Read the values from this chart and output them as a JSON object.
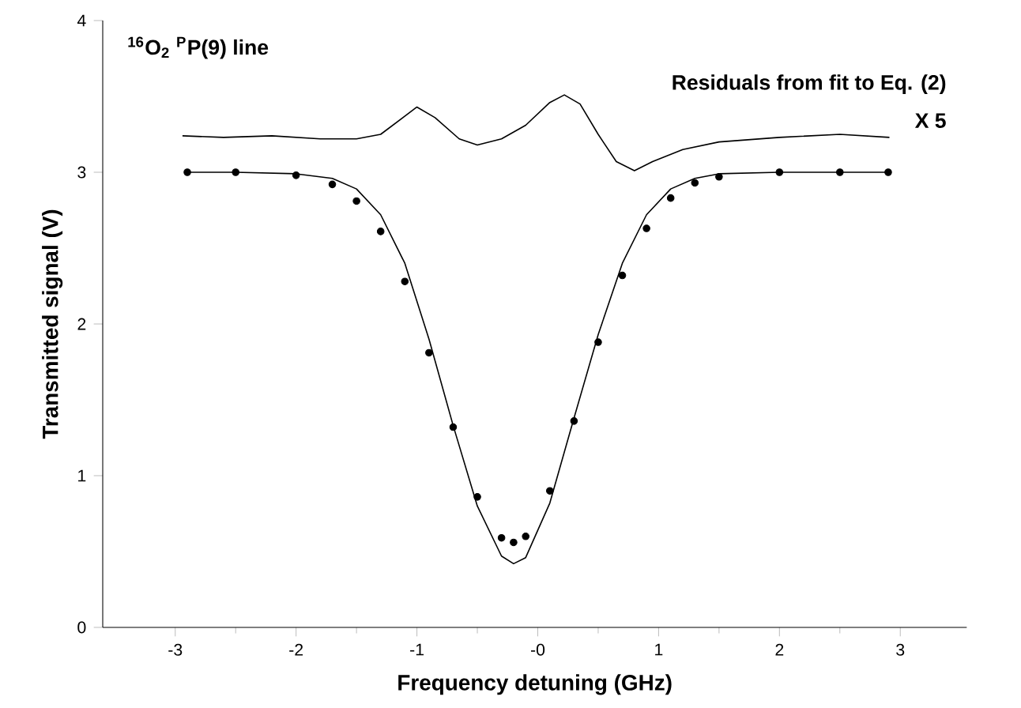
{
  "chart_data": {
    "type": "line",
    "title": "$^{16}$O$_{2}$ $^{P}$P(9) line",
    "xlabel": "Frequency detuning (GHz)",
    "ylabel": "Transmitted signal (V)",
    "annotations": [
      "Residuals from fit to Eq. (2)",
      "X 5"
    ],
    "xlim": [
      -3.6,
      3.55
    ],
    "ylim": [
      0,
      4
    ],
    "xticks": [
      -3,
      -2,
      -1,
      {
        "value": 0,
        "label": "-0"
      },
      1,
      2,
      3
    ],
    "yticks": [
      0,
      1,
      2,
      3,
      4
    ],
    "grid": false,
    "series": [
      {
        "type": "scatter",
        "marker": "circle",
        "color": "#000000",
        "x": [
          -2.9,
          -2.5,
          -2.0,
          -1.7,
          -1.5,
          -1.3,
          -1.1,
          -0.9,
          -0.7,
          -0.5,
          -0.3,
          -0.2,
          -0.1,
          0.1,
          0.3,
          0.5,
          0.7,
          0.9,
          1.1,
          1.3,
          1.5,
          2.0,
          2.5,
          2.9
        ],
        "values": [
          3.0,
          3.0,
          2.98,
          2.92,
          2.81,
          2.61,
          2.28,
          1.81,
          1.32,
          0.86,
          0.59,
          0.56,
          0.6,
          0.9,
          1.36,
          1.88,
          2.32,
          2.63,
          2.83,
          2.93,
          2.97,
          3.0,
          3.0,
          3.0
        ]
      },
      {
        "type": "line",
        "marker": "none",
        "line_style": "solid",
        "color": "#000000",
        "x": [
          -2.9,
          -2.5,
          -2.0,
          -1.7,
          -1.5,
          -1.3,
          -1.1,
          -0.9,
          -0.7,
          -0.5,
          -0.3,
          -0.2,
          -0.1,
          0.1,
          0.3,
          0.5,
          0.7,
          0.9,
          1.1,
          1.3,
          1.5,
          2.0,
          2.5,
          2.9
        ],
        "values": [
          3.0,
          3.0,
          2.99,
          2.96,
          2.89,
          2.72,
          2.4,
          1.9,
          1.33,
          0.8,
          0.47,
          0.42,
          0.46,
          0.82,
          1.38,
          1.93,
          2.4,
          2.72,
          2.89,
          2.96,
          2.99,
          3.0,
          3.0,
          3.0
        ]
      },
      {
        "type": "line",
        "marker": "none",
        "line_style": "solid",
        "color": "#000000",
        "x": [
          -2.94,
          -2.6,
          -2.2,
          -1.8,
          -1.5,
          -1.3,
          -1.15,
          -1.0,
          -0.85,
          -0.65,
          -0.5,
          -0.3,
          -0.1,
          0.1,
          0.22,
          0.35,
          0.5,
          0.65,
          0.8,
          0.95,
          1.2,
          1.5,
          2.0,
          2.5,
          2.91
        ],
        "values": [
          3.24,
          3.23,
          3.24,
          3.22,
          3.22,
          3.25,
          3.34,
          3.43,
          3.36,
          3.22,
          3.18,
          3.22,
          3.31,
          3.46,
          3.51,
          3.45,
          3.25,
          3.07,
          3.01,
          3.07,
          3.15,
          3.2,
          3.23,
          3.25,
          3.23
        ]
      }
    ]
  }
}
